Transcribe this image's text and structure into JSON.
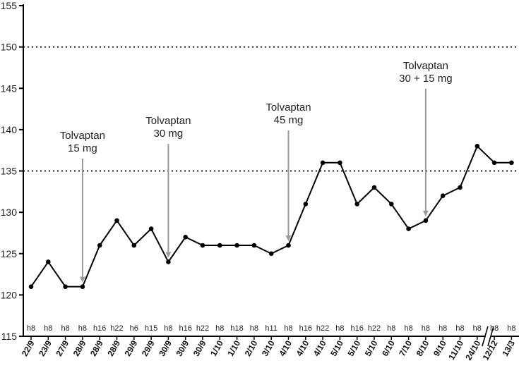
{
  "chart_data": {
    "type": "line",
    "title": "",
    "xlabel": "",
    "ylabel": "",
    "ylim": [
      115,
      155
    ],
    "yticks": [
      115,
      120,
      125,
      130,
      135,
      140,
      145,
      150,
      155
    ],
    "reference_lines": [
      135,
      150
    ],
    "axis_break_after_index": 27,
    "dates": [
      "22/9",
      "23/9",
      "27/9",
      "28/9",
      "28/9",
      "28/9",
      "29/9",
      "29/9",
      "30/9",
      "30/9",
      "30/9",
      "1/10",
      "1/10",
      "2/10",
      "3/10",
      "4/10",
      "4/10",
      "4/10",
      "5/10",
      "5/10",
      "5/10",
      "6/10",
      "7/10",
      "8/10",
      "9/10",
      "11/10",
      "24/10",
      "12/12",
      "13/3"
    ],
    "hours": [
      "h8",
      "h8",
      "h8",
      "h8",
      "h16",
      "h22",
      "h6",
      "h15",
      "h8",
      "h16",
      "h22",
      "h8",
      "h18",
      "h8",
      "h11",
      "h8",
      "h16",
      "h22",
      "h8",
      "h16",
      "h22",
      "h8",
      "h8",
      "h8",
      "h8",
      "h8",
      "h8",
      "h8",
      "h8"
    ],
    "series": [
      {
        "values": [
          121,
          124,
          121,
          121,
          126,
          129,
          126,
          128,
          124,
          127,
          126,
          126,
          126,
          126,
          125,
          126,
          131,
          136,
          136,
          131,
          133,
          131,
          128,
          129,
          132,
          133,
          138,
          136,
          136
        ]
      }
    ],
    "annotations": [
      {
        "lines": [
          "Tolvaptan",
          "15 mg"
        ],
        "index": 3
      },
      {
        "lines": [
          "Tolvaptan",
          "30 mg"
        ],
        "index": 8
      },
      {
        "lines": [
          "Tolvaptan",
          "45 mg"
        ],
        "index": 15
      },
      {
        "lines": [
          "Tolvaptan",
          "30 + 15 mg"
        ],
        "index": 23
      }
    ],
    "colors": {
      "line": "#000000",
      "annotation_arrow": "#9a9a9a",
      "reference": "#000000"
    }
  }
}
